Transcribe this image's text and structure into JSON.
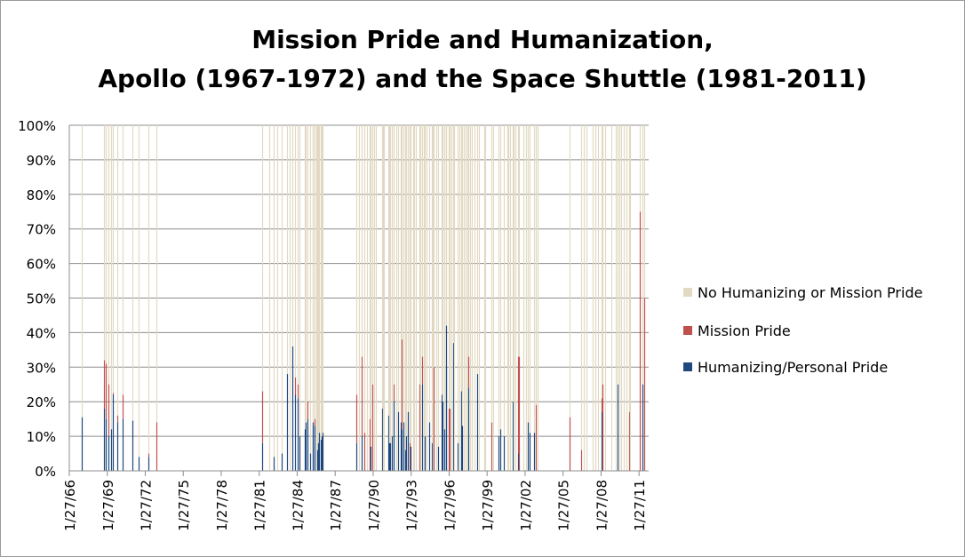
{
  "title": {
    "line1": "Mission Pride and Humanization,",
    "line2": "Apollo (1967-1972) and the Space Shuttle (1981-2011)"
  },
  "legend": [
    {
      "label": "No Humanizing or Mission Pride",
      "color": "#e2d9c2"
    },
    {
      "label": "Mission Pride",
      "color": "#c0504d"
    },
    {
      "label": "Humanizing/Personal Pride",
      "color": "#1f497d"
    }
  ],
  "chart_data": {
    "type": "bar",
    "stacked": "percent",
    "title": "Mission Pride and Humanization, Apollo (1967-1972) and the Space Shuttle (1981-2011)",
    "xlabel": "",
    "ylabel": "",
    "ylim": [
      0,
      1
    ],
    "x_axis": "date",
    "xlim": [
      "1/27/66",
      "11/1/11"
    ],
    "ytick_labels": [
      "0%",
      "10%",
      "20%",
      "30%",
      "40%",
      "50%",
      "60%",
      "70%",
      "80%",
      "90%",
      "100%"
    ],
    "xtick_labels": [
      "1/27/66",
      "1/27/69",
      "1/27/72",
      "1/27/75",
      "1/27/78",
      "1/27/81",
      "1/27/84",
      "1/27/87",
      "1/27/90",
      "1/27/93",
      "1/27/96",
      "1/27/99",
      "1/27/02",
      "1/27/05",
      "1/27/08",
      "1/27/11"
    ],
    "grid": true,
    "legend_position": "right",
    "series_colors": {
      "humanizing": "#1f497d",
      "mission_pride": "#c0504d",
      "none": "#e2d9c2"
    },
    "series": [
      {
        "name": "Humanizing/Personal Pride",
        "key": "humanizing"
      },
      {
        "name": "Mission Pride",
        "key": "mission_pride"
      },
      {
        "name": "No Humanizing or Mission Pride",
        "key": "none"
      }
    ],
    "points": [
      {
        "x": "1967-01-27",
        "humanizing": 0.155,
        "mission_pride": 0
      },
      {
        "x": "1968-10-11",
        "humanizing": 0.18,
        "mission_pride": 0.14
      },
      {
        "x": "1968-12-21",
        "humanizing": 0.15,
        "mission_pride": 0.16
      },
      {
        "x": "1969-03-03",
        "humanizing": 0.1,
        "mission_pride": 0.15
      },
      {
        "x": "1969-05-18",
        "humanizing": 0.12,
        "mission_pride": 0.0
      },
      {
        "x": "1969-07-16",
        "humanizing": 0.22,
        "mission_pride": 0.005
      },
      {
        "x": "1969-11-14",
        "humanizing": 0.14,
        "mission_pride": 0.02
      },
      {
        "x": "1970-04-11",
        "humanizing": 0.15,
        "mission_pride": 0.07
      },
      {
        "x": "1971-01-31",
        "humanizing": 0.145,
        "mission_pride": 0
      },
      {
        "x": "1971-07-26",
        "humanizing": 0.04,
        "mission_pride": 0
      },
      {
        "x": "1972-04-16",
        "humanizing": 0.04,
        "mission_pride": 0.01
      },
      {
        "x": "1972-12-07",
        "humanizing": 0.0,
        "mission_pride": 0.14
      },
      {
        "x": "1981-04-12",
        "humanizing": 0.08,
        "mission_pride": 0.15
      },
      {
        "x": "1981-11-12",
        "humanizing": 0.0,
        "mission_pride": 0.0
      },
      {
        "x": "1982-03-22",
        "humanizing": 0.04,
        "mission_pride": 0.0
      },
      {
        "x": "1982-06-27",
        "humanizing": 0.0,
        "mission_pride": 0.0
      },
      {
        "x": "1982-11-11",
        "humanizing": 0.05,
        "mission_pride": 0.0
      },
      {
        "x": "1983-04-04",
        "humanizing": 0.28,
        "mission_pride": 0.0
      },
      {
        "x": "1983-06-18",
        "humanizing": 0.0,
        "mission_pride": 0.0
      },
      {
        "x": "1983-08-30",
        "humanizing": 0.36,
        "mission_pride": 0.0
      },
      {
        "x": "1983-11-28",
        "humanizing": 0.22,
        "mission_pride": 0.05
      },
      {
        "x": "1984-02-03",
        "humanizing": 0.21,
        "mission_pride": 0.04
      },
      {
        "x": "1984-04-06",
        "humanizing": 0.1,
        "mission_pride": 0.0
      },
      {
        "x": "1984-08-30",
        "humanizing": 0.12,
        "mission_pride": 0.0
      },
      {
        "x": "1984-10-05",
        "humanizing": 0.14,
        "mission_pride": 0.0
      },
      {
        "x": "1984-11-08",
        "humanizing": 0.15,
        "mission_pride": 0.05
      },
      {
        "x": "1985-01-24",
        "humanizing": 0.05,
        "mission_pride": 0.0
      },
      {
        "x": "1985-04-12",
        "humanizing": 0.13,
        "mission_pride": 0.0
      },
      {
        "x": "1985-04-29",
        "humanizing": 0.14,
        "mission_pride": 0.0
      },
      {
        "x": "1985-06-17",
        "humanizing": 0.13,
        "mission_pride": 0.02
      },
      {
        "x": "1985-07-29",
        "humanizing": 0.0,
        "mission_pride": 0.0
      },
      {
        "x": "1985-08-27",
        "humanizing": 0.06,
        "mission_pride": 0.0
      },
      {
        "x": "1985-10-03",
        "humanizing": 0.08,
        "mission_pride": 0.0
      },
      {
        "x": "1985-10-30",
        "humanizing": 0.11,
        "mission_pride": 0.0
      },
      {
        "x": "1985-11-26",
        "humanizing": 0.09,
        "mission_pride": 0.0
      },
      {
        "x": "1986-01-12",
        "humanizing": 0.1,
        "mission_pride": 0.0
      },
      {
        "x": "1986-01-28",
        "humanizing": 0.11,
        "mission_pride": 0.0
      },
      {
        "x": "1988-09-29",
        "humanizing": 0.08,
        "mission_pride": 0.14
      },
      {
        "x": "1988-12-02",
        "humanizing": 0.0,
        "mission_pride": 0.0
      },
      {
        "x": "1989-03-13",
        "humanizing": 0.1,
        "mission_pride": 0.23
      },
      {
        "x": "1989-05-04",
        "humanizing": 0.0,
        "mission_pride": 0.11
      },
      {
        "x": "1989-08-08",
        "humanizing": 0.0,
        "mission_pride": 0.0
      },
      {
        "x": "1989-10-18",
        "humanizing": 0.0,
        "mission_pride": 0.15
      },
      {
        "x": "1989-11-22",
        "humanizing": 0.07,
        "mission_pride": 0.0
      },
      {
        "x": "1990-01-09",
        "humanizing": 0.0,
        "mission_pride": 0.25
      },
      {
        "x": "1990-02-28",
        "humanizing": 0.0,
        "mission_pride": 0.0
      },
      {
        "x": "1990-04-24",
        "humanizing": 0.0,
        "mission_pride": 0.0
      },
      {
        "x": "1990-10-06",
        "humanizing": 0.18,
        "mission_pride": 0.0
      },
      {
        "x": "1990-11-15",
        "humanizing": 0.0,
        "mission_pride": 0.0
      },
      {
        "x": "1990-12-02",
        "humanizing": 0.0,
        "mission_pride": 0.0
      },
      {
        "x": "1991-04-05",
        "humanizing": 0.16,
        "mission_pride": 0.0
      },
      {
        "x": "1991-04-28",
        "humanizing": 0.08,
        "mission_pride": 0.0
      },
      {
        "x": "1991-06-05",
        "humanizing": 0.08,
        "mission_pride": 0.0
      },
      {
        "x": "1991-08-02",
        "humanizing": 0.1,
        "mission_pride": 0.0
      },
      {
        "x": "1991-09-12",
        "humanizing": 0.2,
        "mission_pride": 0.05
      },
      {
        "x": "1991-11-24",
        "humanizing": 0.0,
        "mission_pride": 0.0
      },
      {
        "x": "1992-01-22",
        "humanizing": 0.17,
        "mission_pride": 0.0
      },
      {
        "x": "1992-03-24",
        "humanizing": 0.14,
        "mission_pride": 0.0
      },
      {
        "x": "1992-05-07",
        "humanizing": 0.12,
        "mission_pride": 0.26
      },
      {
        "x": "1992-06-25",
        "humanizing": 0.14,
        "mission_pride": 0.0
      },
      {
        "x": "1992-07-31",
        "humanizing": 0.06,
        "mission_pride": 0.0
      },
      {
        "x": "1992-09-12",
        "humanizing": 0.1,
        "mission_pride": 0.0
      },
      {
        "x": "1992-10-22",
        "humanizing": 0.17,
        "mission_pride": 0.0
      },
      {
        "x": "1992-12-02",
        "humanizing": 0.0,
        "mission_pride": 0.08
      },
      {
        "x": "1993-01-13",
        "humanizing": 0.07,
        "mission_pride": 0.0
      },
      {
        "x": "1993-04-08",
        "humanizing": 0.0,
        "mission_pride": 0.0
      },
      {
        "x": "1993-04-26",
        "humanizing": 0.0,
        "mission_pride": 0.0
      },
      {
        "x": "1993-06-21",
        "humanizing": 0.0,
        "mission_pride": 0.0
      },
      {
        "x": "1993-09-12",
        "humanizing": 0.0,
        "mission_pride": 0.25
      },
      {
        "x": "1993-10-18",
        "humanizing": 0.0,
        "mission_pride": 0.0
      },
      {
        "x": "1993-12-02",
        "humanizing": 0.25,
        "mission_pride": 0.08
      },
      {
        "x": "1994-02-03",
        "humanizing": 0.0,
        "mission_pride": 0.0
      },
      {
        "x": "1994-03-04",
        "humanizing": 0.1,
        "mission_pride": 0.0
      },
      {
        "x": "1994-04-09",
        "humanizing": 0.0,
        "mission_pride": 0.0
      },
      {
        "x": "1994-07-08",
        "humanizing": 0.14,
        "mission_pride": 0.0
      },
      {
        "x": "1994-09-09",
        "humanizing": 0.08,
        "mission_pride": 0.0
      },
      {
        "x": "1994-09-30",
        "humanizing": 0.0,
        "mission_pride": 0.0
      },
      {
        "x": "1994-11-03",
        "humanizing": 0.0,
        "mission_pride": 0.3
      },
      {
        "x": "1995-02-03",
        "humanizing": 0.0,
        "mission_pride": 0.0
      },
      {
        "x": "1995-03-02",
        "humanizing": 0.07,
        "mission_pride": 0.0
      },
      {
        "x": "1995-06-27",
        "humanizing": 0.22,
        "mission_pride": 0.0
      },
      {
        "x": "1995-07-13",
        "humanizing": 0.2,
        "mission_pride": 0.0
      },
      {
        "x": "1995-09-07",
        "humanizing": 0.12,
        "mission_pride": 0.0
      },
      {
        "x": "1995-10-20",
        "humanizing": 0.3,
        "mission_pride": 0.0
      },
      {
        "x": "1995-11-12",
        "humanizing": 0.42,
        "mission_pride": 0.0
      },
      {
        "x": "1996-01-11",
        "humanizing": 0.0,
        "mission_pride": 0.18
      },
      {
        "x": "1996-02-22",
        "humanizing": 0.0,
        "mission_pride": 0.18
      },
      {
        "x": "1996-03-22",
        "humanizing": 0.0,
        "mission_pride": 0.0
      },
      {
        "x": "1996-05-19",
        "humanizing": 0.37,
        "mission_pride": 0.0
      },
      {
        "x": "1996-06-20",
        "humanizing": 0.0,
        "mission_pride": 0.0
      },
      {
        "x": "1996-09-16",
        "humanizing": 0.08,
        "mission_pride": 0.0
      },
      {
        "x": "1996-11-19",
        "humanizing": 0.0,
        "mission_pride": 0.0
      },
      {
        "x": "1997-01-12",
        "humanizing": 0.23,
        "mission_pride": 0.0
      },
      {
        "x": "1997-02-11",
        "humanizing": 0.13,
        "mission_pride": 0.0
      },
      {
        "x": "1997-04-04",
        "humanizing": 0.0,
        "mission_pride": 0.0
      },
      {
        "x": "1997-05-15",
        "humanizing": 0.0,
        "mission_pride": 0.0
      },
      {
        "x": "1997-07-01",
        "humanizing": 0.0,
        "mission_pride": 0.0
      },
      {
        "x": "1997-08-07",
        "humanizing": 0.24,
        "mission_pride": 0.09
      },
      {
        "x": "1997-09-25",
        "humanizing": 0.0,
        "mission_pride": 0.0
      },
      {
        "x": "1997-11-19",
        "humanizing": 0.0,
        "mission_pride": 0.0
      },
      {
        "x": "1998-01-22",
        "humanizing": 0.0,
        "mission_pride": 0.0
      },
      {
        "x": "1998-04-17",
        "humanizing": 0.28,
        "mission_pride": 0.0
      },
      {
        "x": "1998-06-02",
        "humanizing": 0.0,
        "mission_pride": 0.0
      },
      {
        "x": "1998-10-29",
        "humanizing": 0.0,
        "mission_pride": 0.0
      },
      {
        "x": "1998-12-04",
        "humanizing": 0.0,
        "mission_pride": 0.0
      },
      {
        "x": "1999-05-27",
        "humanizing": 0.0,
        "mission_pride": 0.14
      },
      {
        "x": "1999-07-23",
        "humanizing": 0.0,
        "mission_pride": 0.0
      },
      {
        "x": "1999-12-19",
        "humanizing": 0.1,
        "mission_pride": 0.0
      },
      {
        "x": "2000-02-11",
        "humanizing": 0.12,
        "mission_pride": 0.0
      },
      {
        "x": "2000-05-19",
        "humanizing": 0.1,
        "mission_pride": 0.0
      },
      {
        "x": "2000-09-08",
        "humanizing": 0.0,
        "mission_pride": 0.0
      },
      {
        "x": "2000-10-11",
        "humanizing": 0.0,
        "mission_pride": 0.0
      },
      {
        "x": "2000-11-30",
        "humanizing": 0.0,
        "mission_pride": 0.0
      },
      {
        "x": "2001-02-07",
        "humanizing": 0.2,
        "mission_pride": 0.0
      },
      {
        "x": "2001-03-08",
        "humanizing": 0.0,
        "mission_pride": 0.0
      },
      {
        "x": "2001-04-19",
        "humanizing": 0.0,
        "mission_pride": 0.0
      },
      {
        "x": "2001-07-12",
        "humanizing": 0.05,
        "mission_pride": 0.28
      },
      {
        "x": "2001-08-10",
        "humanizing": 0.0,
        "mission_pride": 0.33
      },
      {
        "x": "2001-12-05",
        "humanizing": 0.0,
        "mission_pride": 0.0
      },
      {
        "x": "2002-03-01",
        "humanizing": 0.0,
        "mission_pride": 0.0
      },
      {
        "x": "2002-04-08",
        "humanizing": 0.14,
        "mission_pride": 0.0
      },
      {
        "x": "2002-06-05",
        "humanizing": 0.11,
        "mission_pride": 0.0
      },
      {
        "x": "2002-10-07",
        "humanizing": 0.11,
        "mission_pride": 0.0
      },
      {
        "x": "2002-11-23",
        "humanizing": 0.0,
        "mission_pride": 0.19
      },
      {
        "x": "2003-01-16",
        "humanizing": 0.0,
        "mission_pride": 0.0
      },
      {
        "x": "2005-07-26",
        "humanizing": 0.0,
        "mission_pride": 0.155
      },
      {
        "x": "2006-07-04",
        "humanizing": 0.0,
        "mission_pride": 0.06
      },
      {
        "x": "2006-09-09",
        "humanizing": 0.0,
        "mission_pride": 0.0
      },
      {
        "x": "2006-12-09",
        "humanizing": 0.0,
        "mission_pride": 0.0
      },
      {
        "x": "2007-06-08",
        "humanizing": 0.0,
        "mission_pride": 0.0
      },
      {
        "x": "2007-08-08",
        "humanizing": 0.0,
        "mission_pride": 0.0
      },
      {
        "x": "2007-10-23",
        "humanizing": 0.0,
        "mission_pride": 0.0
      },
      {
        "x": "2008-02-07",
        "humanizing": 0.17,
        "mission_pride": 0.04
      },
      {
        "x": "2008-03-11",
        "humanizing": 0.0,
        "mission_pride": 0.25
      },
      {
        "x": "2008-05-31",
        "humanizing": 0.0,
        "mission_pride": 0.0
      },
      {
        "x": "2008-11-14",
        "humanizing": 0.0,
        "mission_pride": 0.0
      },
      {
        "x": "2009-03-15",
        "humanizing": 0.0,
        "mission_pride": 0.0
      },
      {
        "x": "2009-05-11",
        "humanizing": 0.25,
        "mission_pride": 0.0
      },
      {
        "x": "2009-07-15",
        "humanizing": 0.0,
        "mission_pride": 0.0
      },
      {
        "x": "2009-08-28",
        "humanizing": 0.0,
        "mission_pride": 0.0
      },
      {
        "x": "2009-11-16",
        "humanizing": 0.0,
        "mission_pride": 0.0
      },
      {
        "x": "2010-02-08",
        "humanizing": 0.0,
        "mission_pride": 0.0
      },
      {
        "x": "2010-04-05",
        "humanizing": 0.0,
        "mission_pride": 0.17
      },
      {
        "x": "2010-05-14",
        "humanizing": 0.0,
        "mission_pride": 0.0
      },
      {
        "x": "2011-02-24",
        "humanizing": 0.0,
        "mission_pride": 0.75
      },
      {
        "x": "2011-05-16",
        "humanizing": 0.25,
        "mission_pride": 0.0
      },
      {
        "x": "2011-07-08",
        "humanizing": 0.0,
        "mission_pride": 0.5
      }
    ]
  }
}
